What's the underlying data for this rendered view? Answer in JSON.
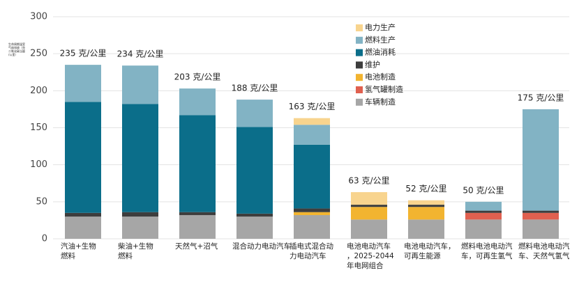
{
  "chart_data": {
    "type": "stacked_bar",
    "y_label": "生命周期温室气体排放（克二氧化碳当量/公里）",
    "categories": [
      "汽油+生物\n燃料",
      "柴油+生物\n燃料",
      "天然气+沼气",
      "混合动力电动汽车",
      "插电式混合动\n力电动汽车",
      "电池电动汽车\n，2025-2044\n年电网组合",
      "电池电动汽车，\n可再生能源",
      "燃料电池电动汽\n车，可再生氢气",
      "燃料电池电动汽\n车、天然气氢气"
    ],
    "series": [
      {
        "name": "车辆制造",
        "color": "#a6a6a6",
        "values": [
          30,
          30,
          32,
          30,
          32,
          26,
          26,
          26,
          26
        ]
      },
      {
        "name": "氢气罐制造",
        "color": "#e0604f",
        "values": [
          0,
          0,
          0,
          0,
          0,
          0,
          0,
          9,
          9
        ]
      },
      {
        "name": "电池制造",
        "color": "#f2b430",
        "values": [
          0,
          0,
          0,
          0,
          4,
          17,
          17,
          0,
          0
        ]
      },
      {
        "name": "维护",
        "color": "#3d3d3d",
        "values": [
          5,
          6,
          4,
          4,
          5,
          3,
          3,
          3,
          3
        ]
      },
      {
        "name": "燃油消耗",
        "color": "#0b6e8a",
        "values": [
          150,
          146,
          131,
          117,
          86,
          0,
          0,
          0,
          0
        ]
      },
      {
        "name": "燃料生产",
        "color": "#82b3c4",
        "values": [
          50,
          52,
          36,
          37,
          27,
          0,
          0,
          12,
          137
        ]
      },
      {
        "name": "电力生产",
        "color": "#f8d48e",
        "values": [
          0,
          0,
          0,
          0,
          9,
          17,
          6,
          0,
          0
        ]
      }
    ],
    "totals": [
      235,
      234,
      203,
      188,
      163,
      63,
      52,
      50,
      175
    ],
    "total_labels": [
      "235 克/公里",
      "234 克/公里",
      "203 克/公里",
      "188 克/公里",
      "163 克/公里",
      "63 克/公里",
      "52 克/公里",
      "50 克/公里",
      "175 克/公里"
    ],
    "ylim": [
      0,
      300
    ],
    "yticks": [
      0,
      50,
      100,
      150,
      200,
      250,
      300
    ],
    "grid": true
  }
}
